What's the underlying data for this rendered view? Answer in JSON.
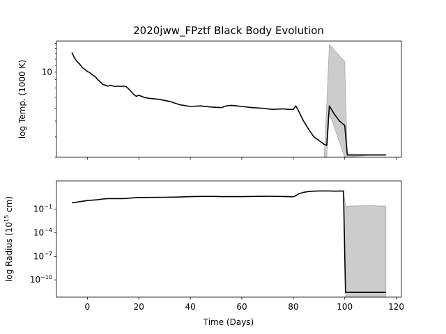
{
  "chart_data": {
    "type": "line",
    "title": "2020jww_FPztf Black Body Evolution",
    "xlabel": "Time (Days)",
    "xlim": [
      -12,
      122
    ],
    "xticks": [
      0,
      20,
      40,
      60,
      80,
      100,
      120
    ],
    "xtick_labels": [
      "0",
      "20",
      "40",
      "60",
      "80",
      "100",
      "120"
    ],
    "panels": [
      {
        "name": "temperature",
        "ylabel": "log Temp. (1000 K)",
        "yscale": "log",
        "ylim": [
          3.0,
          15.5
        ],
        "yticks": [
          10
        ],
        "ytick_labels": [
          "10"
        ],
        "series": {
          "name": "temperature",
          "x": [
            -6,
            -5,
            -4,
            -3,
            -2,
            0,
            1,
            2,
            3,
            4,
            5,
            6,
            7,
            8,
            9,
            10,
            11,
            12,
            13,
            14,
            15,
            16,
            17,
            18,
            19,
            20,
            22,
            24,
            28,
            32,
            36,
            40,
            44,
            48,
            52,
            54,
            56,
            58,
            60,
            64,
            68,
            70,
            72,
            76,
            78,
            80,
            81,
            82,
            84,
            86,
            88,
            90,
            91,
            92,
            93,
            94,
            96,
            98,
            100,
            101,
            110,
            116
          ],
          "y": [
            13.2,
            12.2,
            11.6,
            11.2,
            10.7,
            10.1,
            9.9,
            9.6,
            9.4,
            9.0,
            8.7,
            8.4,
            8.3,
            8.2,
            8.3,
            8.2,
            8.15,
            8.2,
            8.15,
            8.2,
            8.15,
            7.9,
            7.6,
            7.3,
            7.1,
            7.2,
            7.0,
            6.9,
            6.8,
            6.6,
            6.3,
            6.15,
            6.2,
            6.1,
            6.05,
            6.2,
            6.25,
            6.2,
            6.15,
            6.05,
            6.0,
            5.95,
            5.9,
            5.95,
            5.9,
            5.9,
            6.2,
            5.8,
            5.0,
            4.45,
            4.0,
            3.8,
            3.7,
            3.6,
            3.55,
            6.2,
            5.5,
            5.0,
            4.7,
            3.1,
            3.1,
            3.1
          ],
          "band_x": [
            92,
            93,
            94,
            100,
            101,
            110,
            116
          ],
          "band_lower": [
            3.0,
            3.0,
            5.6,
            3.0,
            3.0,
            3.1,
            3.1
          ],
          "band_upper": [
            3.0,
            6.5,
            14.8,
            11.6,
            3.1,
            3.1,
            3.1
          ]
        }
      },
      {
        "name": "radius",
        "ylabel_base": "log Radius (10",
        "ylabel_exp": "15",
        "ylabel_tail": " cm)",
        "yscale": "log",
        "ylim_log10": [
          -12.2,
          2.6
        ],
        "yticks_log10": [
          -1,
          -4,
          -7,
          -10
        ],
        "ytick_base": "10",
        "ytick_exponents": [
          "−1",
          "−4",
          "−7",
          "−10"
        ],
        "series": {
          "name": "radius",
          "x": [
            -6,
            -2,
            0,
            4,
            6,
            8,
            10,
            14,
            18,
            20,
            24,
            30,
            36,
            40,
            44,
            50,
            52,
            60,
            70,
            78,
            80,
            81,
            82,
            84,
            86,
            88,
            90,
            94,
            96,
            99.5,
            100.3,
            116
          ],
          "log10_y": [
            -0.2,
            0.0,
            0.1,
            0.2,
            0.3,
            0.35,
            0.35,
            0.35,
            0.45,
            0.48,
            0.5,
            0.52,
            0.55,
            0.6,
            0.62,
            0.62,
            0.6,
            0.6,
            0.65,
            0.6,
            0.58,
            0.7,
            0.95,
            1.15,
            1.25,
            1.3,
            1.32,
            1.32,
            1.3,
            1.32,
            -11.6,
            -11.6
          ],
          "band_x": [
            99.5,
            100.3,
            101,
            110,
            116
          ],
          "band_lower_log10": [
            1.3,
            -12.2,
            -12.2,
            -12.2,
            -12.2
          ],
          "band_upper_log10": [
            1.32,
            -0.6,
            -0.6,
            -0.55,
            -0.6
          ]
        }
      }
    ]
  }
}
